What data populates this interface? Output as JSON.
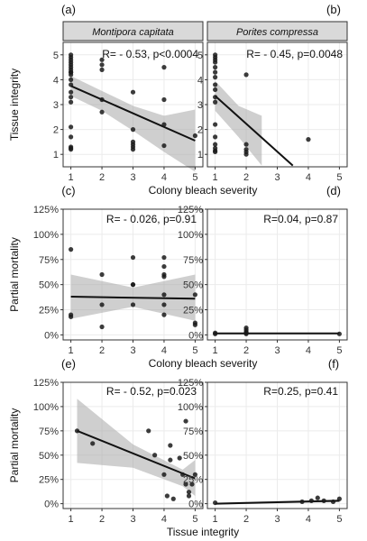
{
  "chart_data": [
    {
      "type": "scatter",
      "panel_label": "(a)",
      "strip": "Montipora capitata",
      "stats": "R= - 0.53, p<0.0004",
      "ylabel": "Tissue integrity",
      "xlabel": "",
      "xlim": [
        0.75,
        5.25
      ],
      "ylim": [
        0.5,
        5.5
      ],
      "xticks": [
        1,
        2,
        3,
        4,
        5
      ],
      "yticks": [
        1,
        2,
        3,
        4,
        5
      ],
      "x": [
        1,
        1,
        1,
        1,
        1,
        1,
        1,
        1,
        1,
        1,
        1,
        1,
        1,
        1,
        1,
        1,
        1,
        1,
        1,
        1,
        2,
        2,
        2,
        2,
        2,
        3,
        3,
        3,
        3,
        3,
        3,
        4,
        4,
        4,
        4,
        5
      ],
      "y": [
        5.0,
        4.9,
        4.8,
        4.7,
        4.6,
        4.5,
        4.4,
        4.3,
        4.3,
        4.2,
        4.0,
        3.8,
        3.5,
        3.3,
        3.1,
        2.1,
        1.7,
        1.3,
        1.25,
        1.2,
        4.8,
        4.6,
        4.4,
        3.2,
        2.7,
        3.5,
        2.0,
        1.5,
        1.4,
        1.3,
        1.2,
        3.2,
        2.2,
        1.35,
        4.5,
        1.75
      ],
      "fit": {
        "x": [
          1,
          5
        ],
        "y": [
          3.75,
          1.55
        ]
      },
      "band": {
        "x": [
          1,
          2,
          3,
          4,
          5
        ],
        "lower": [
          3.35,
          2.75,
          1.95,
          1.1,
          0.3
        ],
        "upper": [
          4.15,
          3.55,
          2.95,
          2.55,
          2.8
        ]
      }
    },
    {
      "type": "scatter",
      "panel_label": "(b)",
      "strip": "Porites compressa",
      "stats": "R= - 0.45, p=0.0048",
      "ylabel": "",
      "xlabel": "",
      "xlim": [
        0.75,
        5.25
      ],
      "ylim": [
        0.5,
        5.5
      ],
      "xticks": [
        1,
        2,
        3,
        4,
        5
      ],
      "yticks": [
        1,
        2,
        3,
        4,
        5
      ],
      "x": [
        1,
        1,
        1,
        1,
        1,
        1,
        1,
        1,
        1,
        1,
        1,
        1,
        1,
        1,
        1,
        1,
        1,
        2,
        2,
        2,
        2,
        2,
        4
      ],
      "y": [
        5.0,
        4.9,
        4.8,
        4.7,
        4.5,
        4.3,
        4.1,
        3.8,
        3.6,
        3.3,
        3.1,
        2.2,
        1.7,
        1.4,
        1.25,
        1.15,
        1.1,
        4.2,
        1.4,
        1.2,
        1.1,
        1.0,
        1.6
      ],
      "fit": {
        "x": [
          1,
          3.5
        ],
        "y": [
          3.35,
          0.55
        ]
      },
      "band": {
        "x": [
          1,
          1.75,
          2.5
        ],
        "lower": [
          2.75,
          1.7,
          0.55
        ],
        "upper": [
          3.95,
          2.95,
          2.55
        ]
      }
    },
    {
      "type": "scatter",
      "panel_label": "(c)",
      "strip": "",
      "stats": "R= - 0.026, p=0.91",
      "ylabel": "Partial mortality",
      "xlabel": "Colony bleach severity",
      "xlim": [
        0.75,
        5.25
      ],
      "ylim": [
        -5,
        125
      ],
      "xticks": [
        1,
        2,
        3,
        4,
        5
      ],
      "yticks": [
        "0%",
        "25%",
        "50%",
        "75%",
        "100%",
        "125%"
      ],
      "ytick_values": [
        0,
        25,
        50,
        75,
        100,
        125
      ],
      "x": [
        1,
        1,
        1,
        2,
        2,
        2,
        3,
        3,
        3,
        3,
        4,
        4,
        4,
        4,
        4,
        4,
        4,
        5,
        5,
        5
      ],
      "y": [
        85,
        18,
        20,
        60,
        30,
        8,
        77,
        50,
        50,
        30,
        60,
        58,
        40,
        77,
        68,
        30,
        20,
        40,
        12,
        10
      ],
      "fit": {
        "x": [
          1,
          5
        ],
        "y": [
          38,
          36
        ]
      },
      "band": {
        "x": [
          1,
          3,
          5
        ],
        "lower": [
          16,
          28,
          14
        ],
        "upper": [
          60,
          47,
          60
        ]
      }
    },
    {
      "type": "scatter",
      "panel_label": "(d)",
      "strip": "",
      "stats": "R=0.04, p=0.87",
      "ylabel": "",
      "xlabel": "",
      "xlim": [
        0.75,
        5.25
      ],
      "ylim": [
        -5,
        125
      ],
      "xticks": [
        1,
        2,
        3,
        4,
        5
      ],
      "yticks": [
        "0%",
        "25%",
        "50%",
        "75%",
        "100%",
        "125%"
      ],
      "ytick_values": [
        0,
        25,
        50,
        75,
        100,
        125
      ],
      "x": [
        1,
        1,
        2,
        2,
        2,
        2,
        2,
        5
      ],
      "y": [
        1,
        2,
        7,
        5,
        3,
        2,
        1,
        1
      ],
      "fit": {
        "x": [
          1,
          5
        ],
        "y": [
          1.5,
          1.5
        ]
      },
      "band": {
        "x": [
          1,
          5
        ],
        "lower": [
          0.8,
          0.8
        ],
        "upper": [
          2.2,
          2.2
        ]
      }
    },
    {
      "type": "scatter",
      "panel_label": "(e)",
      "strip": "",
      "stats": "R= - 0.52, p=0.023",
      "ylabel": "Partial mortality",
      "xlabel": "Tissue integrity",
      "xlim": [
        0.75,
        5.25
      ],
      "ylim": [
        -5,
        125
      ],
      "xticks": [
        1,
        2,
        3,
        4,
        5
      ],
      "yticks": [
        "0%",
        "25%",
        "50%",
        "75%",
        "100%",
        "125%"
      ],
      "ytick_values": [
        0,
        25,
        50,
        75,
        100,
        125
      ],
      "x": [
        1.2,
        1.7,
        3.5,
        3.7,
        4.0,
        4.2,
        4.2,
        4.5,
        4.6,
        4.7,
        4.7,
        4.8,
        4.8,
        4.9,
        5.0,
        4.3,
        4.1
      ],
      "y": [
        75,
        62,
        75,
        50,
        30,
        60,
        45,
        47,
        30,
        85,
        20,
        12,
        8,
        20,
        30,
        5,
        8
      ],
      "fit": {
        "x": [
          1.2,
          5
        ],
        "y": [
          75,
          26
        ]
      },
      "band": {
        "x": [
          1.2,
          3.0,
          4.6,
          5.0
        ],
        "lower": [
          42,
          37,
          18,
          8
        ],
        "upper": [
          108,
          61,
          35,
          45
        ]
      }
    },
    {
      "type": "scatter",
      "panel_label": "(f)",
      "strip": "",
      "stats": "R=0.25, p=0.41",
      "ylabel": "",
      "xlabel": "",
      "xlim": [
        0.75,
        5.25
      ],
      "ylim": [
        -5,
        125
      ],
      "xticks": [
        1,
        2,
        3,
        4,
        5
      ],
      "yticks": [
        "0%",
        "25%",
        "50%",
        "75%",
        "100%",
        "125%"
      ],
      "ytick_values": [
        0,
        25,
        50,
        75,
        100,
        125
      ],
      "x": [
        1,
        3.8,
        4.1,
        4.3,
        4.5,
        4.8,
        5.0
      ],
      "y": [
        1,
        2,
        3,
        6,
        3,
        2,
        5
      ],
      "fit": {
        "x": [
          1,
          5
        ],
        "y": [
          0,
          3
        ]
      },
      "band": {
        "x": [
          1,
          5
        ],
        "lower": [
          -1,
          1.5
        ],
        "upper": [
          1,
          4.5
        ]
      }
    }
  ]
}
